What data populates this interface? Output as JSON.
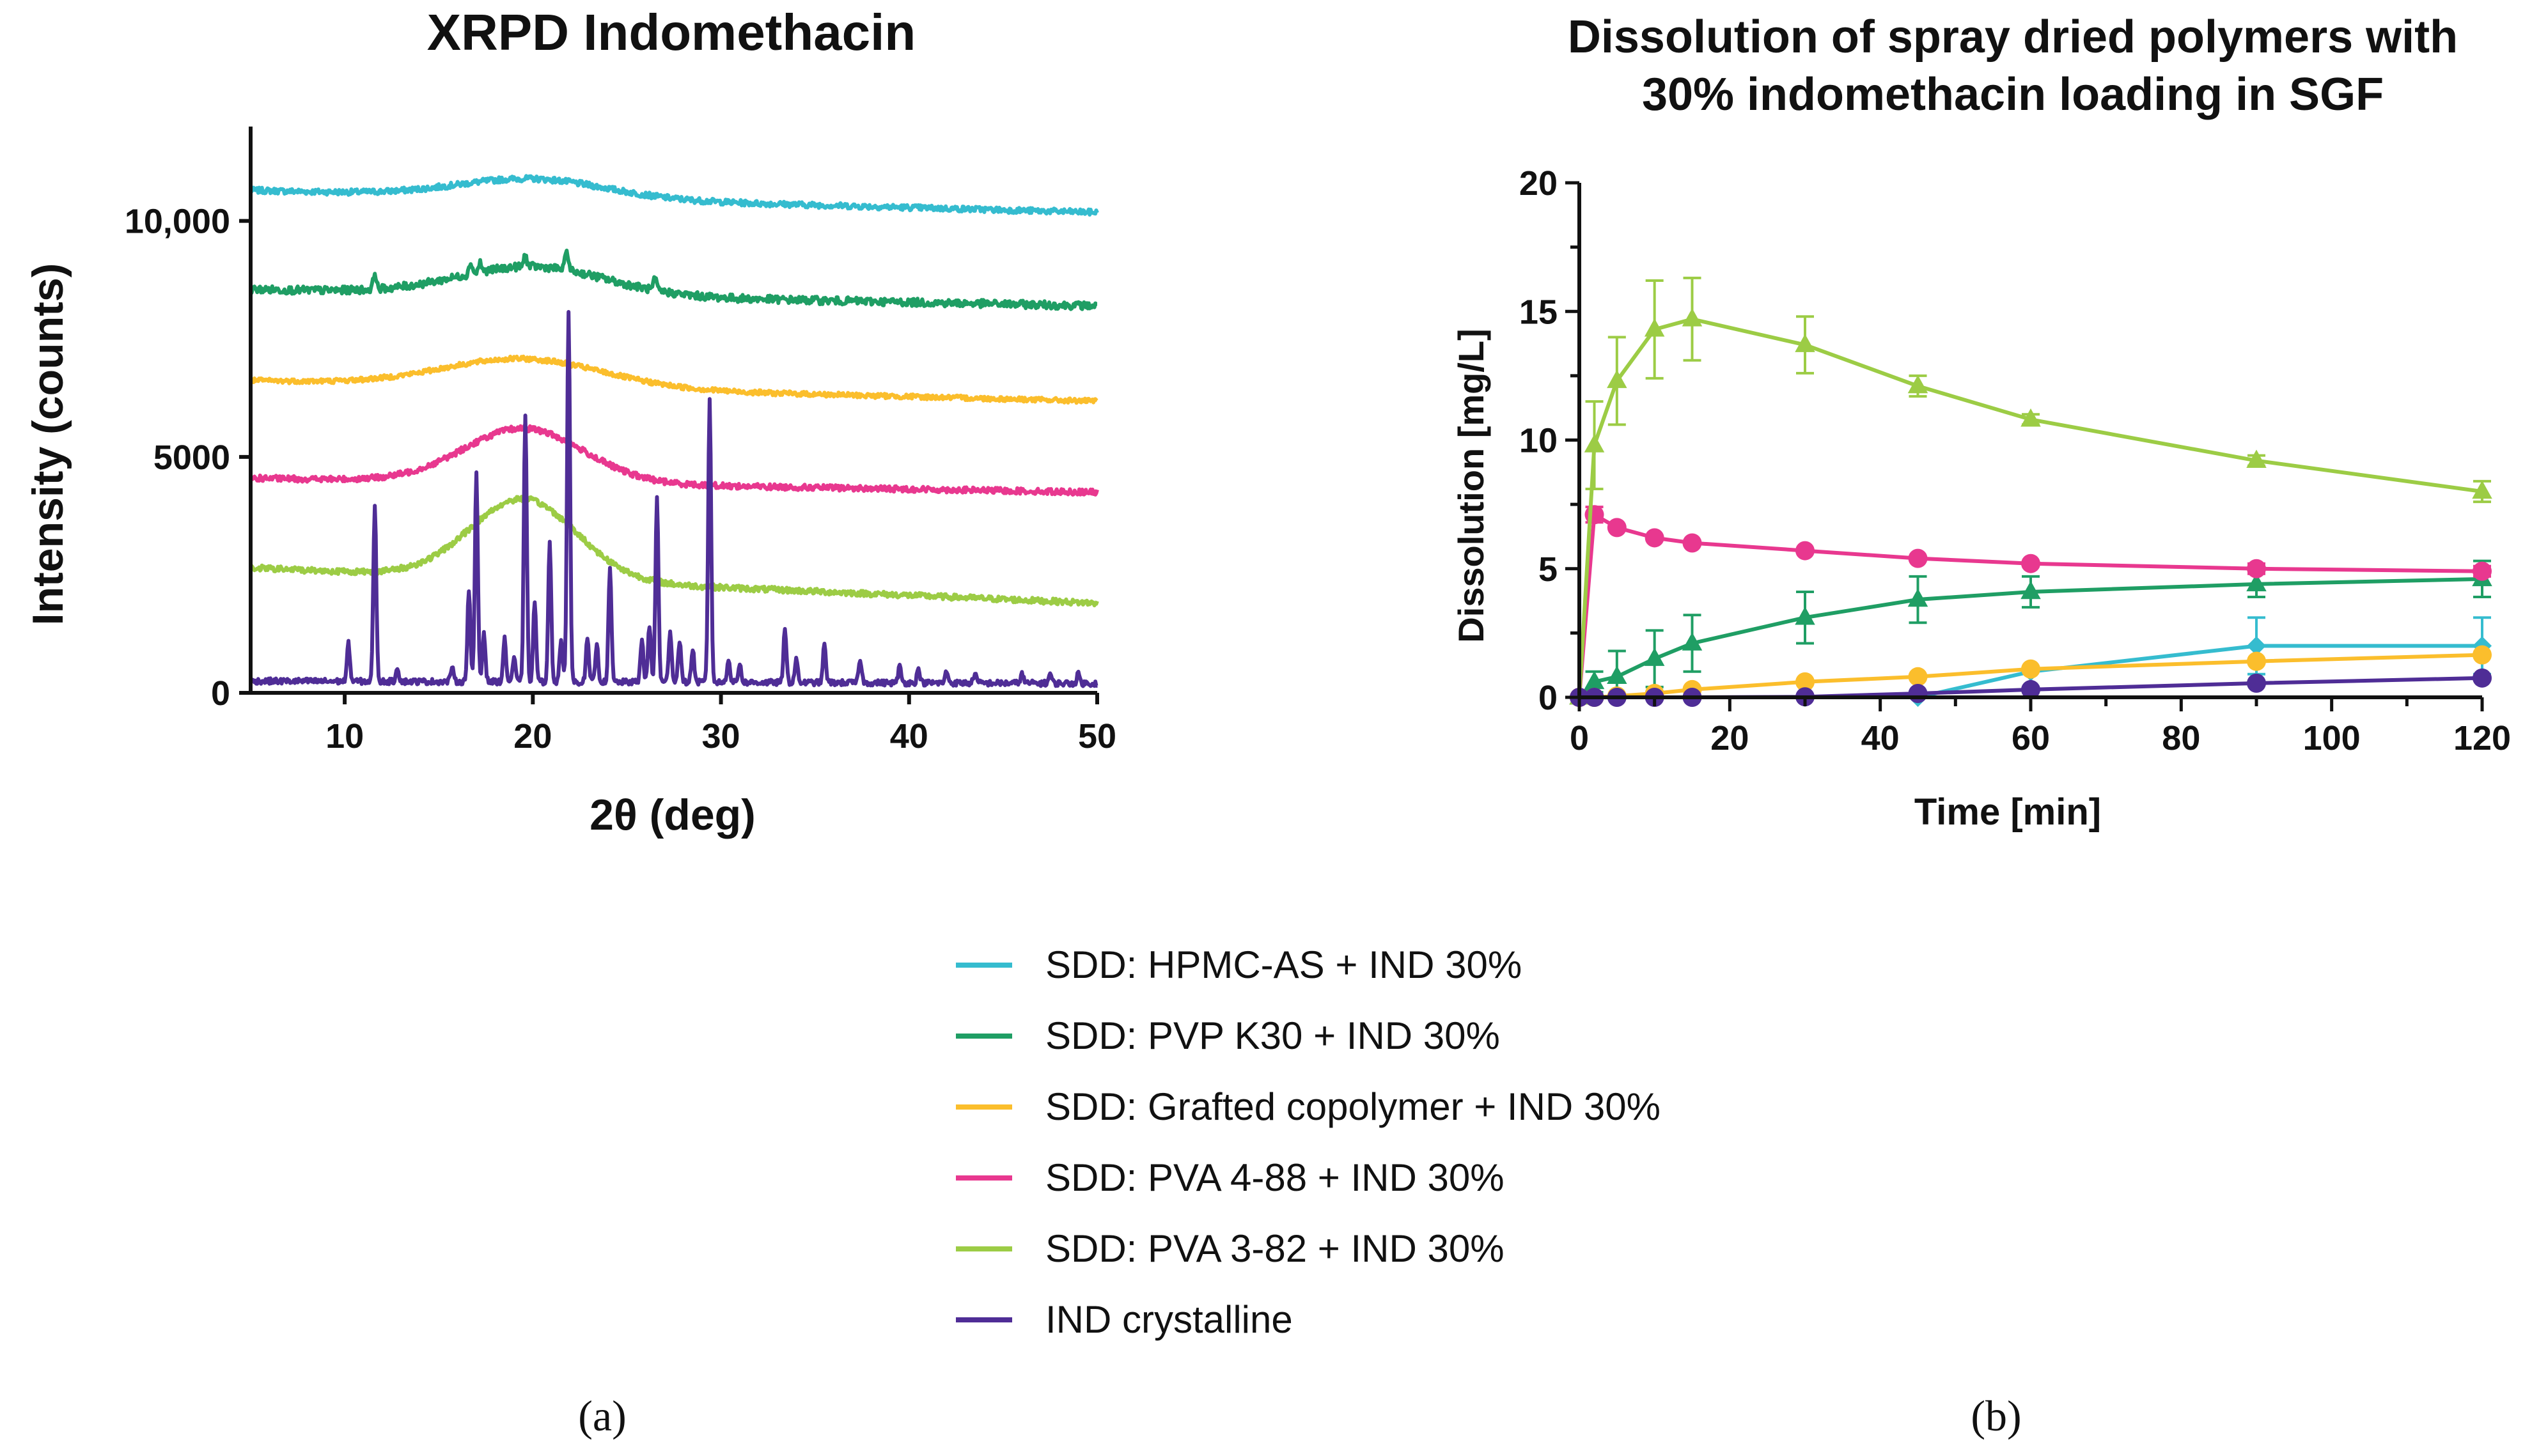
{
  "chart_data": [
    {
      "type": "line",
      "panel_label": "(a)",
      "title": "XRPD Indomethacin",
      "xlabel": "2θ (deg)",
      "ylabel": "Intensity (counts)",
      "xlim": [
        5,
        50
      ],
      "ylim": [
        0,
        12000
      ],
      "xticks": [
        10,
        20,
        30,
        40,
        50
      ],
      "xtick_labels": [
        "10",
        "20",
        "30",
        "40",
        "50"
      ],
      "yticks": [
        0,
        5000,
        10000
      ],
      "ytick_labels": [
        "0",
        "5000",
        "10,000"
      ],
      "series": [
        {
          "name": "SDD: HPMC-AS + IND 30%",
          "color": "#35bccf",
          "baseline": 10650,
          "halo_center": 20,
          "halo_height": 400,
          "halo_width": 5.5,
          "end_value": 10180,
          "noise": 60,
          "peaks": []
        },
        {
          "name": "SDD: PVP K30 + IND 30%",
          "color": "#1f9e64",
          "baseline": 8550,
          "halo_center": 20,
          "halo_height": 600,
          "halo_width": 5.5,
          "end_value": 8200,
          "noise": 80,
          "peaks": [
            [
              11.6,
              350
            ],
            [
              16.7,
              250
            ],
            [
              17.2,
              200
            ],
            [
              19.6,
              250
            ],
            [
              21.8,
              450
            ],
            [
              26.5,
              250
            ]
          ]
        },
        {
          "name": "SDD: Grafted copolymer + IND 30%",
          "color": "#fbbe2c",
          "baseline": 6620,
          "halo_center": 19.5,
          "halo_height": 600,
          "halo_width": 6,
          "end_value": 6180,
          "noise": 50,
          "peaks": []
        },
        {
          "name": "SDD: PVA 4-88 + IND 30%",
          "color": "#e8388f",
          "baseline": 4550,
          "halo_center": 19.5,
          "halo_height": 1150,
          "halo_width": 4.5,
          "end_value": 4250,
          "noise": 60,
          "peaks": []
        },
        {
          "name": "SDD: PVA 3-82 + IND 30%",
          "color": "#9ccc45",
          "baseline": 2650,
          "halo_center": 19.5,
          "halo_height": 1700,
          "halo_width": 4,
          "end_value": 1900,
          "noise": 60,
          "peaks": []
        },
        {
          "name": "IND crystalline",
          "color": "#4f2d96",
          "baseline": 250,
          "halo_center": 20,
          "halo_height": 0,
          "halo_width": 1,
          "end_value": 200,
          "noise": 60,
          "peaks": [
            [
              10.2,
              800
            ],
            [
              11.6,
              3750
            ],
            [
              12.8,
              300
            ],
            [
              15.7,
              300
            ],
            [
              16.6,
              1950
            ],
            [
              17.0,
              4400
            ],
            [
              17.4,
              1050
            ],
            [
              18.5,
              900
            ],
            [
              19.0,
              500
            ],
            [
              19.6,
              5700
            ],
            [
              20.1,
              1700
            ],
            [
              20.9,
              2950
            ],
            [
              21.5,
              900
            ],
            [
              21.9,
              7900
            ],
            [
              22.9,
              900
            ],
            [
              23.4,
              800
            ],
            [
              24.1,
              2400
            ],
            [
              25.8,
              900
            ],
            [
              26.2,
              1200
            ],
            [
              26.6,
              3900
            ],
            [
              27.3,
              1100
            ],
            [
              27.8,
              900
            ],
            [
              28.5,
              700
            ],
            [
              29.4,
              6000
            ],
            [
              30.4,
              500
            ],
            [
              31.0,
              400
            ],
            [
              33.4,
              1100
            ],
            [
              34.0,
              500
            ],
            [
              35.5,
              800
            ],
            [
              37.4,
              500
            ],
            [
              39.5,
              350
            ],
            [
              40.5,
              300
            ],
            [
              42.0,
              250
            ],
            [
              43.5,
              200
            ],
            [
              46.0,
              200
            ],
            [
              47.5,
              200
            ],
            [
              49.0,
              200
            ]
          ]
        }
      ]
    },
    {
      "type": "line",
      "panel_label": "(b)",
      "title": [
        "Dissolution of spray dried polymers with",
        "30% indomethacin loading in SGF"
      ],
      "xlabel": "Time [min]",
      "ylabel": "Dissolution [mg/L]",
      "xlim": [
        0,
        120
      ],
      "ylim": [
        0,
        20
      ],
      "xticks": [
        0,
        20,
        40,
        60,
        80,
        100,
        120
      ],
      "xtick_labels": [
        "0",
        "20",
        "40",
        "60",
        "80",
        "100",
        "120"
      ],
      "yticks": [
        0,
        5,
        10,
        15,
        20
      ],
      "ytick_labels": [
        "0",
        "5",
        "10",
        "15",
        "20"
      ],
      "series": [
        {
          "name": "SDD: HPMC-AS + IND 30%",
          "color": "#35bccf",
          "marker": "diamond",
          "x": [
            0,
            2,
            5,
            10,
            15,
            30,
            45,
            60,
            90,
            120
          ],
          "y": [
            0,
            0,
            0,
            0,
            0,
            0,
            0,
            1.0,
            2.0,
            2.0
          ],
          "err": [
            0,
            0,
            0,
            0,
            0,
            0,
            0,
            0,
            1.1,
            1.1
          ]
        },
        {
          "name": "SDD: PVP K30 + IND 30%",
          "color": "#1f9e64",
          "marker": "triangle",
          "x": [
            0,
            2,
            5,
            10,
            15,
            30,
            45,
            60,
            90,
            120
          ],
          "y": [
            0,
            0.6,
            0.8,
            1.5,
            2.1,
            3.1,
            3.8,
            4.1,
            4.4,
            4.6
          ],
          "err": [
            0,
            0.4,
            1.0,
            1.1,
            1.1,
            1.0,
            0.9,
            0.6,
            0.5,
            0.7
          ]
        },
        {
          "name": "SDD: Grafted copolymer + IND 30%",
          "color": "#fbbe2c",
          "marker": "circle",
          "x": [
            0,
            2,
            5,
            10,
            15,
            30,
            45,
            60,
            90,
            120
          ],
          "y": [
            0,
            0,
            0.05,
            0.15,
            0.3,
            0.6,
            0.8,
            1.1,
            1.4,
            1.65
          ],
          "err": [
            0,
            0,
            0,
            0,
            0,
            0,
            0,
            0,
            0,
            0
          ]
        },
        {
          "name": "SDD: PVA 4-88 + IND 30%",
          "color": "#e8388f",
          "marker": "circle",
          "x": [
            0,
            2,
            5,
            10,
            15,
            30,
            45,
            60,
            90,
            120
          ],
          "y": [
            0,
            7.1,
            6.6,
            6.2,
            6.0,
            5.7,
            5.4,
            5.2,
            5.0,
            4.9
          ],
          "err": [
            0,
            0.3,
            0,
            0,
            0,
            0,
            0,
            0,
            0.2,
            0.2
          ]
        },
        {
          "name": "SDD: PVA 3-82 + IND 30%",
          "color": "#9ccc45",
          "marker": "triangle",
          "x": [
            0,
            2,
            5,
            10,
            15,
            30,
            45,
            60,
            90,
            120
          ],
          "y": [
            0,
            9.8,
            12.3,
            14.3,
            14.7,
            13.7,
            12.1,
            10.8,
            9.2,
            8.0
          ],
          "err": [
            0,
            1.7,
            1.7,
            1.9,
            1.6,
            1.1,
            0.4,
            0.2,
            0.2,
            0.4
          ]
        },
        {
          "name": "IND crystalline",
          "color": "#4f2d96",
          "marker": "circle",
          "x": [
            0,
            2,
            5,
            10,
            15,
            30,
            45,
            60,
            90,
            120
          ],
          "y": [
            0,
            0,
            0,
            0,
            0,
            0.02,
            0.15,
            0.3,
            0.55,
            0.75
          ],
          "err": [
            0,
            0,
            0,
            0,
            0,
            0,
            0,
            0,
            0,
            0
          ]
        }
      ]
    }
  ],
  "legend": {
    "placement": "bottom-center",
    "entries": [
      {
        "label": "SDD: HPMC-AS + IND 30%",
        "color": "#35bccf"
      },
      {
        "label": "SDD: PVP K30 + IND 30%",
        "color": "#1f9e64"
      },
      {
        "label": "SDD: Grafted copolymer + IND 30%",
        "color": "#fbbe2c"
      },
      {
        "label": "SDD: PVA 4-88 + IND 30%",
        "color": "#e8388f"
      },
      {
        "label": "SDD: PVA 3-82 + IND 30%",
        "color": "#9ccc45"
      },
      {
        "label": "IND crystalline",
        "color": "#4f2d96"
      }
    ]
  }
}
